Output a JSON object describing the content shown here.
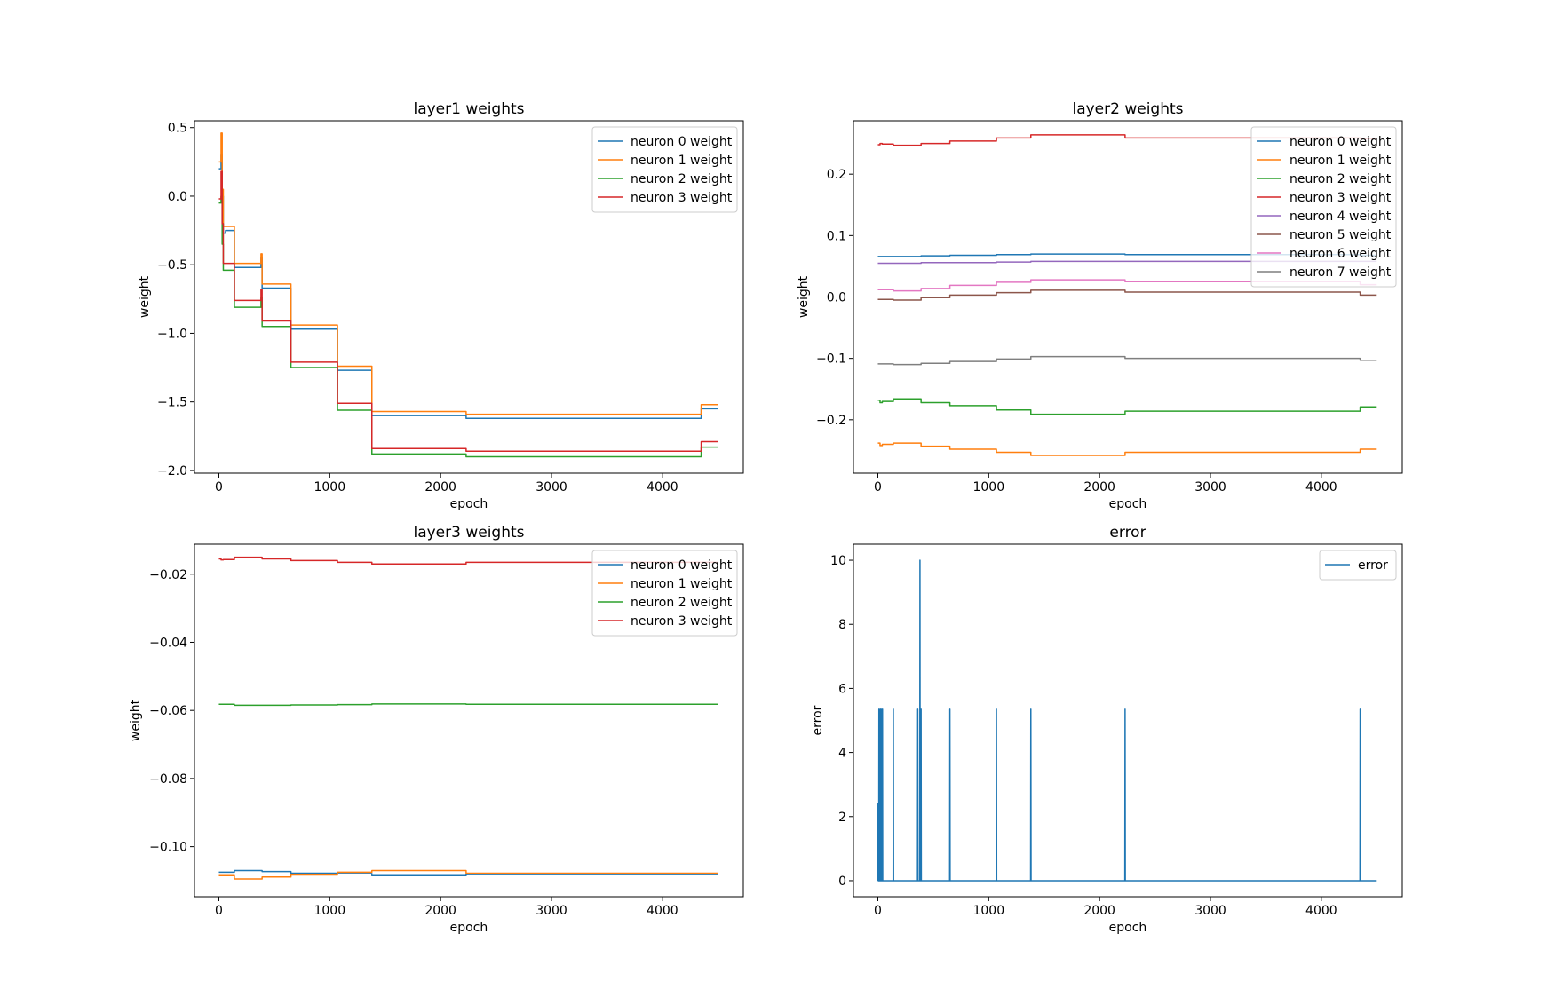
{
  "chart_data": [
    {
      "type": "line",
      "title": "layer1 weights",
      "xlabel": "epoch",
      "ylabel": "weight",
      "xlim": [
        -220,
        4730
      ],
      "ylim": [
        -2.02,
        0.55
      ],
      "xticks": [
        0,
        1000,
        2000,
        3000,
        4000
      ],
      "xtick_labels": [
        "0",
        "1000",
        "2000",
        "3000",
        "4000"
      ],
      "yticks": [
        0.5,
        0.0,
        -0.5,
        -1.0,
        -1.5,
        -2.0
      ],
      "ytick_labels": [
        "0.5",
        "0.0",
        "−0.5",
        "−1.0",
        "−1.5",
        "−2.0"
      ],
      "legend": "top-right",
      "series": [
        {
          "name": "neuron 0 weight",
          "color": "#1f77b4",
          "step": true,
          "x": [
            0,
            20,
            30,
            40,
            60,
            140,
            370,
            380,
            390,
            650,
            1070,
            1380,
            2230,
            4350,
            4500
          ],
          "y": [
            0.2,
            0.3,
            0.0,
            -0.27,
            -0.25,
            -0.52,
            -0.52,
            -0.45,
            -0.67,
            -0.97,
            -1.27,
            -1.6,
            -1.62,
            -1.55,
            -1.55
          ]
        },
        {
          "name": "neuron 1 weight",
          "color": "#ff7f0e",
          "step": true,
          "x": [
            0,
            20,
            30,
            40,
            60,
            140,
            370,
            380,
            390,
            650,
            1070,
            1380,
            2230,
            4350,
            4500
          ],
          "y": [
            0.25,
            0.46,
            0.05,
            -0.22,
            -0.22,
            -0.49,
            -0.49,
            -0.42,
            -0.64,
            -0.94,
            -1.24,
            -1.57,
            -1.59,
            -1.52,
            -1.52
          ]
        },
        {
          "name": "neuron 2 weight",
          "color": "#2ca02c",
          "step": true,
          "x": [
            0,
            20,
            30,
            40,
            60,
            140,
            370,
            380,
            390,
            650,
            1070,
            1380,
            2230,
            4350,
            4500
          ],
          "y": [
            -0.05,
            0.0,
            -0.35,
            -0.54,
            -0.54,
            -0.81,
            -0.81,
            -0.74,
            -0.95,
            -1.25,
            -1.56,
            -1.88,
            -1.9,
            -1.83,
            -1.83
          ]
        },
        {
          "name": "neuron 3 weight",
          "color": "#d62728",
          "step": true,
          "x": [
            0,
            20,
            30,
            40,
            60,
            140,
            370,
            380,
            390,
            650,
            1070,
            1380,
            2230,
            4350,
            4500
          ],
          "y": [
            -0.02,
            0.18,
            -0.2,
            -0.49,
            -0.49,
            -0.76,
            -0.76,
            -0.68,
            -0.91,
            -1.21,
            -1.51,
            -1.84,
            -1.86,
            -1.79,
            -1.79
          ]
        }
      ]
    },
    {
      "type": "line",
      "title": "layer2 weights",
      "xlabel": "epoch",
      "ylabel": "weight",
      "xlim": [
        -220,
        4730
      ],
      "ylim": [
        -0.287,
        0.287
      ],
      "xticks": [
        0,
        1000,
        2000,
        3000,
        4000
      ],
      "xtick_labels": [
        "0",
        "1000",
        "2000",
        "3000",
        "4000"
      ],
      "yticks": [
        0.2,
        0.1,
        0.0,
        -0.1,
        -0.2
      ],
      "ytick_labels": [
        "0.2",
        "0.1",
        "0.0",
        "−0.1",
        "−0.2"
      ],
      "legend": "top-right",
      "series": [
        {
          "name": "neuron 0 weight",
          "color": "#1f77b4",
          "step": true,
          "x": [
            0,
            140,
            390,
            650,
            1070,
            1380,
            2230,
            4350,
            4500
          ],
          "y": [
            0.066,
            0.066,
            0.067,
            0.068,
            0.069,
            0.07,
            0.069,
            0.068,
            0.068
          ]
        },
        {
          "name": "neuron 1 weight",
          "color": "#ff7f0e",
          "step": true,
          "x": [
            0,
            20,
            40,
            140,
            390,
            650,
            1070,
            1380,
            2230,
            4350,
            4500
          ],
          "y": [
            -0.238,
            -0.242,
            -0.24,
            -0.238,
            -0.243,
            -0.248,
            -0.253,
            -0.258,
            -0.253,
            -0.248,
            -0.248
          ]
        },
        {
          "name": "neuron 2 weight",
          "color": "#2ca02c",
          "step": true,
          "x": [
            0,
            20,
            40,
            140,
            390,
            650,
            1070,
            1380,
            2230,
            4350,
            4500
          ],
          "y": [
            -0.168,
            -0.172,
            -0.17,
            -0.166,
            -0.172,
            -0.177,
            -0.184,
            -0.191,
            -0.186,
            -0.179,
            -0.179
          ]
        },
        {
          "name": "neuron 3 weight",
          "color": "#d62728",
          "step": true,
          "x": [
            0,
            20,
            40,
            140,
            390,
            650,
            1070,
            1380,
            2230,
            4350,
            4500
          ],
          "y": [
            0.248,
            0.25,
            0.249,
            0.247,
            0.25,
            0.254,
            0.259,
            0.264,
            0.259,
            0.258,
            0.258
          ]
        },
        {
          "name": "neuron 4 weight",
          "color": "#9467bd",
          "step": true,
          "x": [
            0,
            390,
            1070,
            1380,
            2230,
            4500
          ],
          "y": [
            0.055,
            0.056,
            0.057,
            0.058,
            0.058,
            0.058
          ]
        },
        {
          "name": "neuron 5 weight",
          "color": "#8c564b",
          "step": true,
          "x": [
            0,
            140,
            390,
            650,
            1070,
            1380,
            2230,
            4350,
            4500
          ],
          "y": [
            -0.004,
            -0.005,
            -0.001,
            0.003,
            0.007,
            0.011,
            0.008,
            0.003,
            0.003
          ]
        },
        {
          "name": "neuron 6 weight",
          "color": "#e377c2",
          "step": true,
          "x": [
            0,
            140,
            390,
            650,
            1070,
            1380,
            2230,
            4350,
            4500
          ],
          "y": [
            0.012,
            0.01,
            0.014,
            0.019,
            0.024,
            0.028,
            0.025,
            0.02,
            0.02
          ]
        },
        {
          "name": "neuron 7 weight",
          "color": "#7f7f7f",
          "step": true,
          "x": [
            0,
            140,
            390,
            650,
            1070,
            1380,
            2230,
            4350,
            4500
          ],
          "y": [
            -0.109,
            -0.11,
            -0.108,
            -0.105,
            -0.101,
            -0.097,
            -0.1,
            -0.103,
            -0.103
          ]
        }
      ]
    },
    {
      "type": "line",
      "title": "layer3 weights",
      "xlabel": "epoch",
      "ylabel": "weight",
      "xlim": [
        -220,
        4730
      ],
      "ylim": [
        -0.1147,
        -0.0112
      ],
      "xticks": [
        0,
        1000,
        2000,
        3000,
        4000
      ],
      "xtick_labels": [
        "0",
        "1000",
        "2000",
        "3000",
        "4000"
      ],
      "yticks": [
        -0.02,
        -0.04,
        -0.06,
        -0.08,
        -0.1
      ],
      "ytick_labels": [
        "−0.02",
        "−0.04",
        "−0.06",
        "−0.08",
        "−0.10"
      ],
      "legend": "top-right",
      "series": [
        {
          "name": "neuron 0 weight",
          "color": "#1f77b4",
          "step": true,
          "x": [
            0,
            140,
            390,
            650,
            1070,
            1380,
            2230,
            4500
          ],
          "y": [
            -0.1075,
            -0.107,
            -0.1073,
            -0.1078,
            -0.1079,
            -0.1085,
            -0.1082,
            -0.1082
          ]
        },
        {
          "name": "neuron 1 weight",
          "color": "#ff7f0e",
          "step": true,
          "x": [
            0,
            140,
            390,
            650,
            1070,
            1380,
            2230,
            4500
          ],
          "y": [
            -0.1085,
            -0.1095,
            -0.1089,
            -0.1083,
            -0.1075,
            -0.107,
            -0.1078,
            -0.1078
          ]
        },
        {
          "name": "neuron 2 weight",
          "color": "#2ca02c",
          "step": true,
          "x": [
            0,
            140,
            650,
            1070,
            1380,
            2230,
            4500
          ],
          "y": [
            -0.0582,
            -0.0585,
            -0.0584,
            -0.0583,
            -0.0581,
            -0.0582,
            -0.0583
          ]
        },
        {
          "name": "neuron 3 weight",
          "color": "#d62728",
          "step": true,
          "x": [
            0,
            20,
            40,
            140,
            390,
            650,
            1070,
            1380,
            2230,
            4500
          ],
          "y": [
            -0.0155,
            -0.0158,
            -0.0157,
            -0.015,
            -0.0155,
            -0.016,
            -0.0165,
            -0.017,
            -0.0165,
            -0.0165
          ]
        }
      ]
    },
    {
      "type": "line",
      "title": "error",
      "xlabel": "epoch",
      "ylabel": "error",
      "xlim": [
        -220,
        4730
      ],
      "ylim": [
        -0.5,
        10.5
      ],
      "xticks": [
        0,
        1000,
        2000,
        3000,
        4000
      ],
      "xtick_labels": [
        "0",
        "1000",
        "2000",
        "3000",
        "4000"
      ],
      "yticks": [
        0,
        2,
        4,
        6,
        8,
        10
      ],
      "ytick_labels": [
        "0",
        "2",
        "4",
        "6",
        "8",
        "10"
      ],
      "legend": "top-right",
      "series": [
        {
          "name": "error",
          "color": "#1f77b4",
          "step": false,
          "x": [
            0,
            2,
            4,
            8,
            10,
            12,
            20,
            22,
            24,
            28,
            30,
            32,
            40,
            42,
            44,
            138,
            140,
            142,
            358,
            360,
            362,
            378,
            380,
            382,
            388,
            390,
            392,
            648,
            650,
            652,
            1068,
            1070,
            1072,
            1378,
            1380,
            1382,
            2228,
            2230,
            2232,
            4348,
            4350,
            4352,
            4500
          ],
          "y": [
            0,
            2.4,
            0,
            0,
            5.35,
            0,
            0,
            5.35,
            0,
            0,
            5.35,
            0,
            0,
            5.35,
            0,
            0,
            5.35,
            0,
            0,
            5.35,
            0,
            0,
            10,
            0,
            0,
            5.35,
            0,
            0,
            5.35,
            0,
            0,
            5.35,
            0,
            0,
            5.35,
            0,
            0,
            5.35,
            0,
            0,
            5.35,
            0,
            0
          ]
        }
      ]
    }
  ]
}
